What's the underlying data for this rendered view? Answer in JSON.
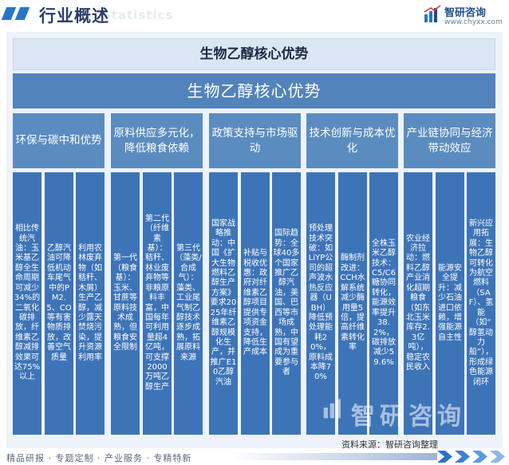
{
  "header": {
    "title": "行业概述",
    "watermark": "Statistics",
    "brand": "智研咨询",
    "url": "www.chyxx.com"
  },
  "diagram": {
    "title": "生物乙醇核心优势",
    "core": "生物乙醇核心优势",
    "categories": [
      {
        "label": "环保与碳中和优势",
        "items": [
          "相比传统汽油：玉米基乙醇全生命周期可减少34%的二氧化碳排放，纤维素乙醇减排效果可达75%以上",
          "乙醇汽油可降低机动车尾气中的PM2.5、CO等有害物质排放，改善空气质量",
          "利用农林废弃物（如秸秆、木屑）生产乙醇，减少露天焚烧污染，提升资源利用率"
        ]
      },
      {
        "label": "原料供应多元化，降低粮食依赖",
        "items": [
          "第一代（粮食基）：玉米、甘蔗等原料技术成熟，但粮食安全限制",
          "第二代（纤维素基）：秸秆、林业废弃物等非粮原料丰富，中国每年可利用量超4亿吨，可支撑2000万吨乙醇生产",
          "第三代（藻类/合成气）：藻类、工业尾气制乙醇技术逐步成熟，拓展原料来源"
        ]
      },
      {
        "label": "政策支持与市场驱动",
        "items": [
          "国家战略推动：中国《扩大生物燃料乙醇生产方案》要求2025年纤维素乙醇规模化生产，并推广E10乙醇汽油",
          "补贴与税收优惠：政府对纤维素乙醇项目提供专项资金支持，降低生产成本",
          "国际趋势：全球40多个国家推广乙醇汽油，美国、巴西等市场成熟，中国有望成为重要参与者"
        ]
      },
      {
        "label": "技术创新与成本优化",
        "items": [
          "预处理技术突破：如LiYP公司的超声波水热反应器（UBH）降低预处理能耗20%，原料成本降70%",
          "酶制剂改进：CCH水解系统减少酶用量5倍，提高纤维素转化率",
          "全株玉米乙醇技术：C5/C6糖协同转化，能源效率提升38.2%，碳排放减少59.6%"
        ]
      },
      {
        "label": "产业链协同与经济带动效应",
        "items": [
          "农业经济拉动：燃料乙醇产业消化超期粮食（如东北玉米库存2.3亿吨），稳定农民收入",
          "能源安全提升：减少石油进口依赖，增强能源自主性",
          "新兴应用拓展：生物乙醇可转化为航空燃料（SAF）、氢能（如“醇氢动力船”），形成绿色能源闭环"
        ]
      }
    ]
  },
  "watermark_brand": "智研咨询",
  "source": "资料来源：智研咨询整理",
  "footer": "精品研报 · 专题定制 · 产业服务 · 专精特新",
  "colors": {
    "title_bar": "#dbe6f5",
    "core_bar": "#5283ba",
    "category": "#5b8cc0",
    "item": "#3d74b8",
    "accent": "#2a74c7"
  }
}
